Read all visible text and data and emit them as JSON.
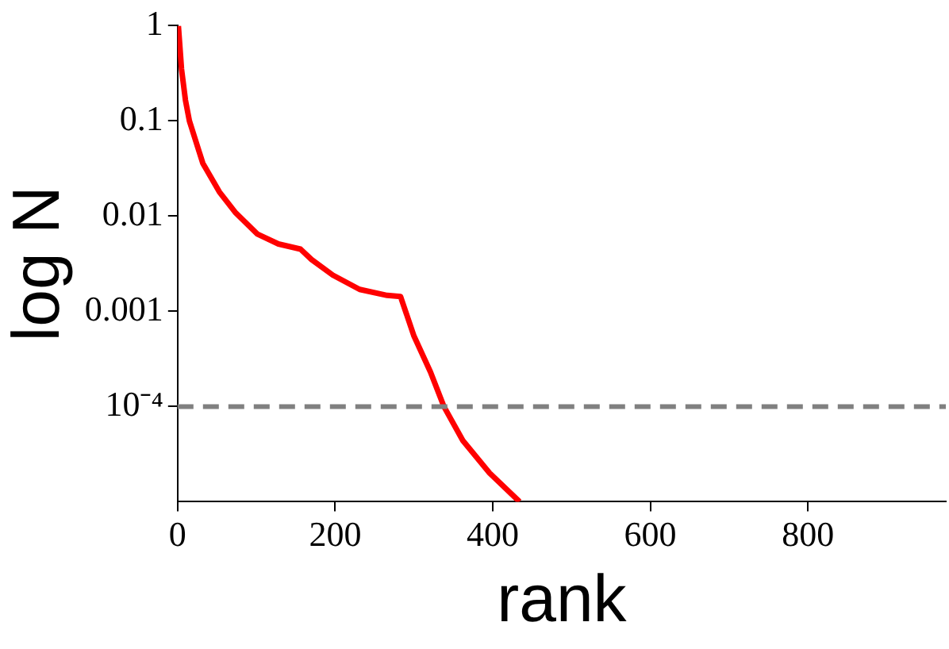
{
  "chart_data": {
    "type": "line",
    "xlabel": "rank",
    "ylabel": "log N",
    "log": "y",
    "grid": false,
    "legend": false,
    "marker": "none",
    "line_style": "solid",
    "xlim": [
      0,
      975
    ],
    "xticks": [
      0,
      200,
      400,
      600,
      800
    ],
    "ylim": [
      1e-05,
      1
    ],
    "yticks": [
      1,
      0.1,
      0.01,
      0.001,
      {
        "value": 0.0001,
        "label": "10⁻⁴"
      }
    ],
    "series": [
      {
        "color": "#ff0000",
        "x": [
          1,
          5,
          10,
          15,
          32,
          53,
          73,
          101,
          128,
          156,
          170,
          197,
          231,
          266,
          283,
          300,
          321,
          338,
          362,
          396,
          434
        ],
        "values": [
          1,
          0.35,
          0.165,
          0.1,
          0.036,
          0.018,
          0.011,
          0.0065,
          0.0051,
          0.0045,
          0.0035,
          0.0024,
          0.0017,
          0.00147,
          0.00143,
          0.00055,
          0.00023,
          0.0001,
          4.4e-05,
          2e-05,
          1e-05
        ]
      }
    ],
    "ref_lines": [
      {
        "axis": "y",
        "value": 0.0001,
        "color": "#808080",
        "line_style": "dashed"
      }
    ]
  }
}
